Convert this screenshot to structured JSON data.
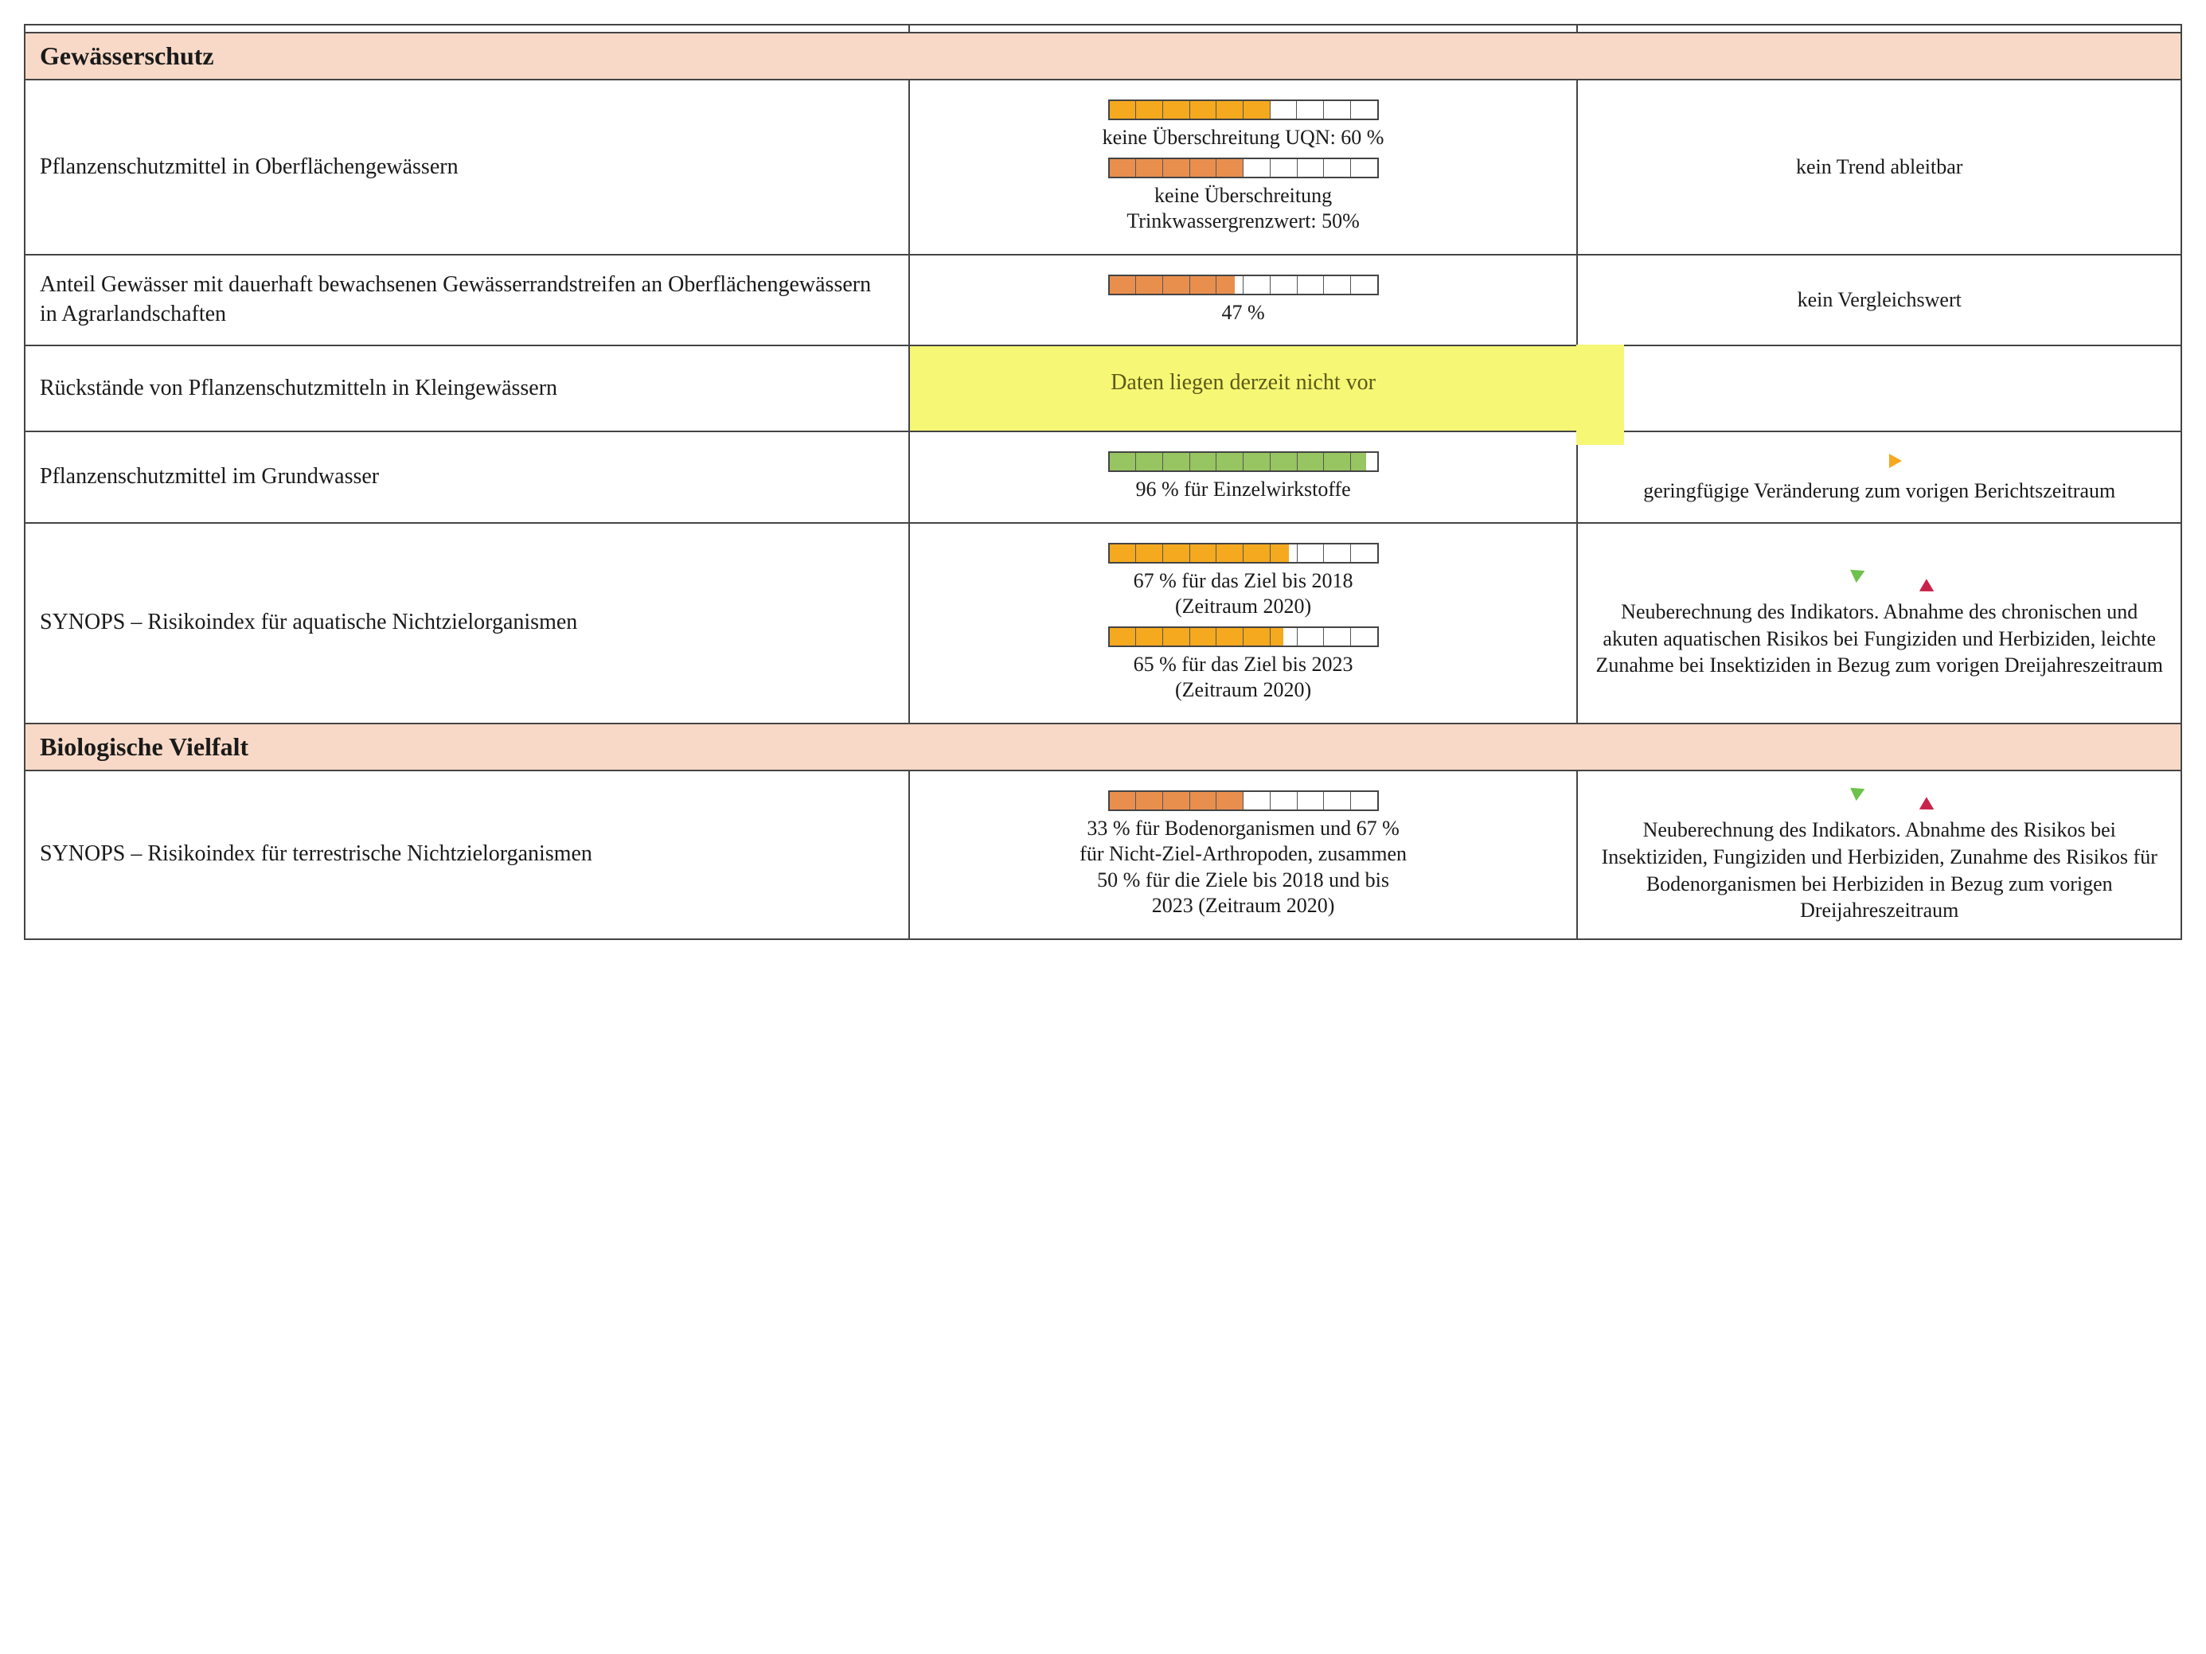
{
  "colors": {
    "section_bg": "#f8d9c7",
    "highlight_bg": "#f6f774",
    "bar_yellow": "#f5a91f",
    "bar_orange": "#e98f4e",
    "bar_green": "#97c561",
    "arrow_green": "#6cc24a",
    "arrow_yellow": "#f5a91f",
    "arrow_magenta": "#c8234a",
    "border": "#444444",
    "text": "#1a1a1a"
  },
  "bar_ticks": 10,
  "sections": {
    "gewaesserschutz": {
      "title": "Gewässerschutz",
      "rows": {
        "r1": {
          "indicator": "Pflanzenschutzmittel in Oberflächengewässern",
          "bars": [
            {
              "value_pct": 60,
              "color": "#f5a91f",
              "caption": "keine Überschreitung UQN: 60 %"
            },
            {
              "value_pct": 50,
              "color": "#e98f4e",
              "caption": "keine Überschreitung Trinkwassergrenzwert: 50%"
            }
          ],
          "trend_text": "kein Trend ableitbar",
          "trend_arrows": []
        },
        "r2": {
          "indicator": "Anteil Gewässer mit dauerhaft bewachsenen Gewässerrandstreifen an Oberflächengewässern in Agrarlandschaften",
          "bars": [
            {
              "value_pct": 47,
              "color": "#e98f4e",
              "caption": "47 %"
            }
          ],
          "trend_text": "kein Vergleichswert",
          "trend_arrows": []
        },
        "r3": {
          "indicator": "Rückstände von Pflanzenschutzmitteln in Kleingewässern",
          "no_data_text": "Daten liegen derzeit nicht vor",
          "highlighted": true
        },
        "r4": {
          "indicator": "Pflanzenschutzmittel im Grundwasser",
          "bars": [
            {
              "value_pct": 96,
              "color": "#97c561",
              "caption": "96 % für Einzelwirkstoffe"
            }
          ],
          "trend_text": "geringfügige Veränderung zum vorigen Berichtszeitraum",
          "trend_arrows": [
            {
              "color": "#f5a91f",
              "rotation_deg": 0
            }
          ]
        },
        "r5": {
          "indicator": "SYNOPS – Risikoindex für aquatische Nichtzielorganismen",
          "bars": [
            {
              "value_pct": 67,
              "color": "#f5a91f",
              "caption": "67 % für das Ziel bis 2018 (Zeitraum 2020)"
            },
            {
              "value_pct": 65,
              "color": "#f5a91f",
              "caption": "65 % für das Ziel bis 2023 (Zeitraum 2020)"
            }
          ],
          "trend_text": "Neuberechnung des Indikators. Abnahme des chronischen und akuten aquatischen Risikos bei Fungiziden und Herbiziden, leichte Zunahme bei Insektiziden in Bezug zum vorigen Dreijahreszeitraum",
          "trend_arrows": [
            {
              "color": "#6cc24a",
              "rotation_deg": -25
            },
            {
              "color": "#c8234a",
              "rotation_deg": 30
            }
          ]
        }
      }
    },
    "biovielfalt": {
      "title": "Biologische Vielfalt",
      "rows": {
        "r1": {
          "indicator": "SYNOPS – Risikoindex für terrestrische Nichtzielorganismen",
          "bars": [
            {
              "value_pct": 50,
              "color": "#e98f4e",
              "caption": "33 % für Bodenorganismen und 67 % für Nicht-Ziel-Arthropoden, zusammen 50 % für die Ziele bis 2018 und bis 2023 (Zeitraum 2020)"
            }
          ],
          "trend_text": "Neuberechnung des Indikators. Abnahme des Risikos bei Insektiziden, Fungiziden und Herbiziden, Zunahme des Risikos für Bodenorganismen bei Herbiziden in Bezug zum vorigen Dreijahreszeitraum",
          "trend_arrows": [
            {
              "color": "#6cc24a",
              "rotation_deg": -25
            },
            {
              "color": "#c8234a",
              "rotation_deg": 30
            }
          ]
        }
      }
    }
  }
}
